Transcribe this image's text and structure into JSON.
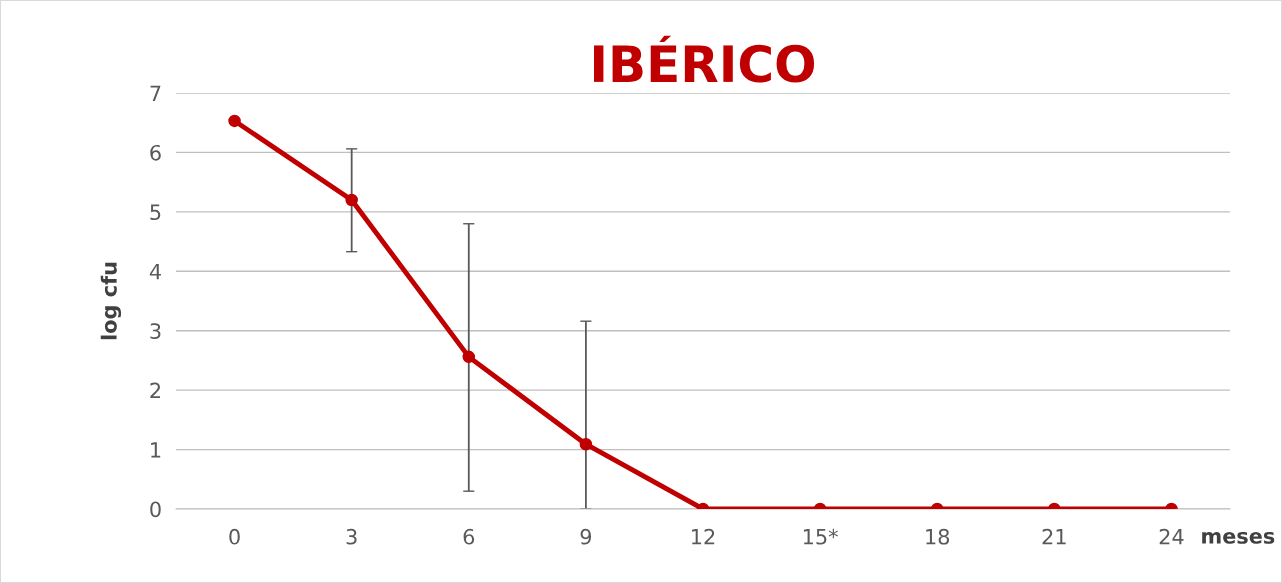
{
  "chart_data": {
    "type": "line",
    "title": "IBÉRICO",
    "xlabel": "meses",
    "ylabel": "log cfu",
    "categories": [
      "0",
      "3",
      "6",
      "9",
      "12",
      "15*",
      "18",
      "21",
      "24"
    ],
    "series": [
      {
        "color": "#c00000",
        "values": [
          6.53,
          5.2,
          2.56,
          1.09,
          0,
          0,
          0,
          0,
          0
        ],
        "errors": [
          null,
          [
            4.33,
            6.06
          ],
          [
            0.3,
            4.8
          ],
          [
            0,
            3.16
          ],
          null,
          null,
          null,
          null,
          null
        ]
      }
    ],
    "ylim": [
      0,
      7
    ],
    "yticks": [
      0,
      1,
      2,
      3,
      4,
      5,
      6,
      7
    ],
    "grid": "y",
    "marker": "circle",
    "line_style": "solid"
  }
}
